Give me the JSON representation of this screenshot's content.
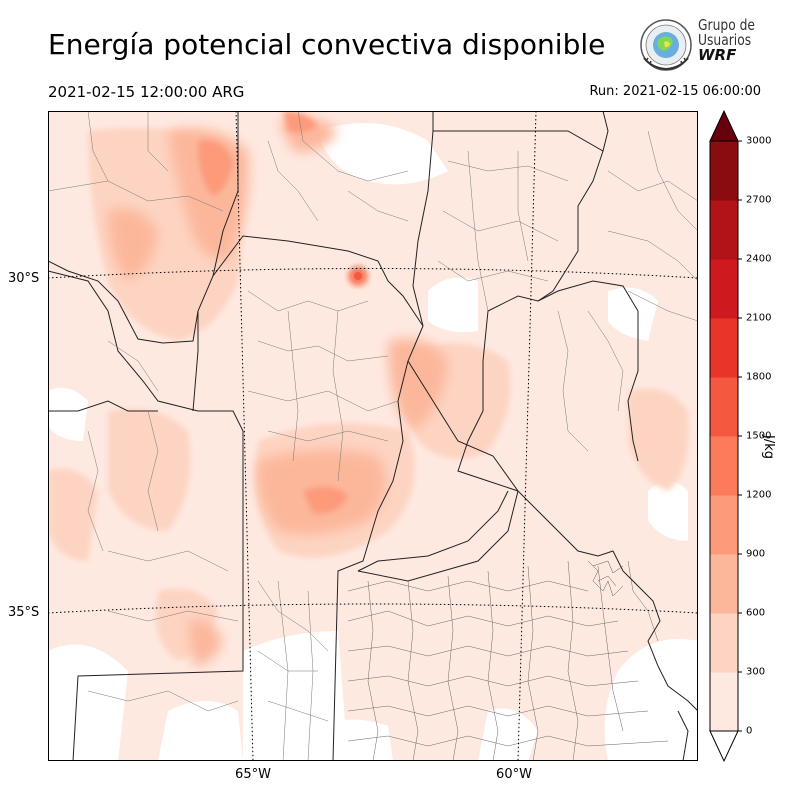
{
  "title": "Energía potencial convectiva disponible",
  "valid_time": "2021-02-15 12:00:00 ARG",
  "run_time": "Run: 2021-02-15 06:00:00",
  "logo": {
    "line1": "Grupo de",
    "line2": "Usuarios",
    "line3": "WRF",
    "icon": "globe-seal-icon"
  },
  "map": {
    "field": "CAPE",
    "lat_labels": [
      "30°S",
      "35°S"
    ],
    "lon_labels": [
      "65°W",
      "60°W"
    ]
  },
  "colorbar": {
    "unit": "J/kg",
    "levels": [
      0,
      300,
      600,
      900,
      1200,
      1500,
      1800,
      2100,
      2400,
      2700,
      3000
    ],
    "tick_labels": [
      "0",
      "300",
      "600",
      "900",
      "1200",
      "1500",
      "1800",
      "2100",
      "2400",
      "2700",
      "3000"
    ],
    "colors": [
      "#fee9e1",
      "#fdd4c2",
      "#fcb79b",
      "#fc9a7a",
      "#fb7b5b",
      "#f4593f",
      "#e83429",
      "#ce1a1e",
      "#b11318",
      "#8a0b10"
    ],
    "under_color": "#ffffff",
    "over_color": "#67000d"
  }
}
